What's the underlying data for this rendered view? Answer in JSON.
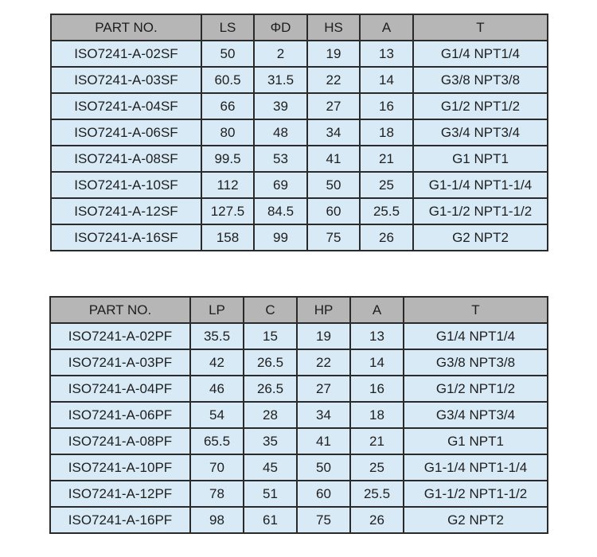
{
  "tables": [
    {
      "headers": [
        "PART NO.",
        "LS",
        "ΦD",
        "HS",
        "A",
        "T"
      ],
      "rows": [
        [
          "ISO7241-A-02SF",
          "50",
          "2",
          "19",
          "13",
          "G1/4 NPT1/4"
        ],
        [
          "ISO7241-A-03SF",
          "60.5",
          "31.5",
          "22",
          "14",
          "G3/8 NPT3/8"
        ],
        [
          "ISO7241-A-04SF",
          "66",
          "39",
          "27",
          "16",
          "G1/2 NPT1/2"
        ],
        [
          "ISO7241-A-06SF",
          "80",
          "48",
          "34",
          "18",
          "G3/4 NPT3/4"
        ],
        [
          "ISO7241-A-08SF",
          "99.5",
          "53",
          "41",
          "21",
          "G1 NPT1"
        ],
        [
          "ISO7241-A-10SF",
          "112",
          "69",
          "50",
          "25",
          "G1-1/4 NPT1-1/4"
        ],
        [
          "ISO7241-A-12SF",
          "127.5",
          "84.5",
          "60",
          "25.5",
          "G1-1/2 NPT1-1/2"
        ],
        [
          "ISO7241-A-16SF",
          "158",
          "99",
          "75",
          "26",
          "G2 NPT2"
        ]
      ]
    },
    {
      "headers": [
        "PART NO.",
        "LP",
        "C",
        "HP",
        "A",
        "T"
      ],
      "rows": [
        [
          "ISO7241-A-02PF",
          "35.5",
          "15",
          "19",
          "13",
          "G1/4 NPT1/4"
        ],
        [
          "ISO7241-A-03PF",
          "42",
          "26.5",
          "22",
          "14",
          "G3/8 NPT3/8"
        ],
        [
          "ISO7241-A-04PF",
          "46",
          "26.5",
          "27",
          "16",
          "G1/2 NPT1/2"
        ],
        [
          "ISO7241-A-06PF",
          "54",
          "28",
          "34",
          "18",
          "G3/4 NPT3/4"
        ],
        [
          "ISO7241-A-08PF",
          "65.5",
          "35",
          "41",
          "21",
          "G1 NPT1"
        ],
        [
          "ISO7241-A-10PF",
          "70",
          "45",
          "50",
          "25",
          "G1-1/4 NPT1-1/4"
        ],
        [
          "ISO7241-A-12PF",
          "78",
          "51",
          "60",
          "25.5",
          "G1-1/2 NPT1-1/2"
        ],
        [
          "ISO7241-A-16PF",
          "98",
          "61",
          "75",
          "26",
          "G2 NPT2"
        ]
      ]
    }
  ],
  "colors": {
    "header_bg": "#b6b6b6",
    "cell_bg": "#d8eaf6",
    "border": "#2a2a2a"
  }
}
